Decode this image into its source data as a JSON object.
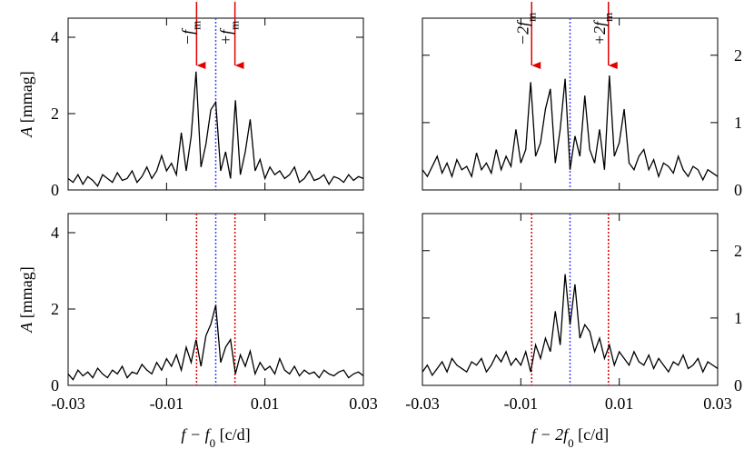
{
  "chart_data": [
    {
      "type": "line",
      "xlim": [
        -0.03,
        0.03
      ],
      "xticks": [
        -0.03,
        -0.01,
        0.01,
        0.03
      ],
      "ylim": [
        0,
        4.5
      ],
      "yticks": [
        0,
        2,
        4
      ],
      "y_axis_side": "left",
      "ylabel": [
        "A",
        " [mmag]"
      ],
      "center": 0,
      "center_color": "#4444ff",
      "sidebands": [
        -0.0039,
        0.0039
      ],
      "sideband_color": "#e00000",
      "sideband_style": "arrow",
      "annotations": [
        [
          "−f",
          "m"
        ],
        [
          "+f",
          "m"
        ]
      ],
      "x": [
        -0.03,
        -0.029,
        -0.028,
        -0.027,
        -0.026,
        -0.025,
        -0.024,
        -0.023,
        -0.022,
        -0.021,
        -0.02,
        -0.019,
        -0.018,
        -0.017,
        -0.016,
        -0.015,
        -0.014,
        -0.013,
        -0.012,
        -0.011,
        -0.01,
        -0.009,
        -0.008,
        -0.007,
        -0.006,
        -0.005,
        -0.004,
        -0.003,
        -0.002,
        -0.001,
        0,
        0.001,
        0.002,
        0.003,
        0.004,
        0.005,
        0.006,
        0.007,
        0.008,
        0.009,
        0.01,
        0.011,
        0.012,
        0.013,
        0.014,
        0.015,
        0.016,
        0.017,
        0.018,
        0.019,
        0.02,
        0.021,
        0.022,
        0.023,
        0.024,
        0.025,
        0.026,
        0.027,
        0.028,
        0.029,
        0.03
      ],
      "series": [
        {
          "color": "#000000",
          "values": [
            0.3,
            0.2,
            0.4,
            0.15,
            0.35,
            0.25,
            0.1,
            0.4,
            0.3,
            0.2,
            0.45,
            0.25,
            0.3,
            0.5,
            0.2,
            0.35,
            0.6,
            0.3,
            0.5,
            0.9,
            0.5,
            0.7,
            0.4,
            1.5,
            0.5,
            1.4,
            3.1,
            0.6,
            1.2,
            2.1,
            2.3,
            0.5,
            1.0,
            0.3,
            2.35,
            0.4,
            1.0,
            1.85,
            0.5,
            0.8,
            0.3,
            0.6,
            0.4,
            0.5,
            0.3,
            0.4,
            0.6,
            0.2,
            0.3,
            0.5,
            0.25,
            0.3,
            0.4,
            0.15,
            0.35,
            0.3,
            0.2,
            0.4,
            0.25,
            0.35,
            0.3
          ]
        }
      ]
    },
    {
      "type": "line",
      "xlim": [
        -0.03,
        0.03
      ],
      "xticks": [
        -0.03,
        -0.01,
        0.01,
        0.03
      ],
      "ylim": [
        0,
        2.55
      ],
      "yticks": [
        0,
        1,
        2
      ],
      "y_axis_side": "right",
      "center": 0,
      "center_color": "#4444ff",
      "sidebands": [
        -0.0078,
        0.0078
      ],
      "sideband_color": "#e00000",
      "sideband_style": "arrow",
      "annotations": [
        [
          "−2f",
          "m"
        ],
        [
          "+2f",
          "m"
        ]
      ],
      "x": [
        -0.03,
        -0.029,
        -0.028,
        -0.027,
        -0.026,
        -0.025,
        -0.024,
        -0.023,
        -0.022,
        -0.021,
        -0.02,
        -0.019,
        -0.018,
        -0.017,
        -0.016,
        -0.015,
        -0.014,
        -0.013,
        -0.012,
        -0.011,
        -0.01,
        -0.009,
        -0.008,
        -0.007,
        -0.006,
        -0.005,
        -0.004,
        -0.003,
        -0.002,
        -0.001,
        0,
        0.001,
        0.002,
        0.003,
        0.004,
        0.005,
        0.006,
        0.007,
        0.008,
        0.009,
        0.01,
        0.011,
        0.012,
        0.013,
        0.014,
        0.015,
        0.016,
        0.017,
        0.018,
        0.019,
        0.02,
        0.021,
        0.022,
        0.023,
        0.024,
        0.025,
        0.026,
        0.027,
        0.028,
        0.029,
        0.03
      ],
      "series": [
        {
          "color": "#000000",
          "values": [
            0.3,
            0.2,
            0.35,
            0.5,
            0.25,
            0.4,
            0.2,
            0.45,
            0.3,
            0.35,
            0.2,
            0.55,
            0.3,
            0.4,
            0.25,
            0.6,
            0.3,
            0.5,
            0.35,
            0.9,
            0.4,
            0.6,
            1.6,
            0.5,
            0.7,
            1.2,
            1.5,
            0.4,
            0.9,
            1.65,
            0.3,
            0.8,
            0.5,
            1.4,
            0.6,
            0.4,
            0.9,
            0.3,
            1.7,
            0.5,
            0.7,
            1.2,
            0.4,
            0.3,
            0.5,
            0.6,
            0.3,
            0.45,
            0.2,
            0.4,
            0.35,
            0.25,
            0.5,
            0.3,
            0.2,
            0.35,
            0.3,
            0.15,
            0.3,
            0.25,
            0.2
          ]
        }
      ]
    },
    {
      "type": "line",
      "xlim": [
        -0.03,
        0.03
      ],
      "xticks": [
        -0.03,
        -0.01,
        0.01,
        0.03
      ],
      "ylim": [
        0,
        4.5
      ],
      "yticks": [
        0,
        2,
        4
      ],
      "y_axis_side": "left",
      "ylabel": [
        "A",
        " [mmag]"
      ],
      "xlabel": [
        "f",
        " − f",
        "0",
        " [c/d]"
      ],
      "center": 0,
      "center_color": "#4444ff",
      "sidebands": [
        -0.0039,
        0.0039
      ],
      "sideband_color": "#e00000",
      "sideband_style": "dotted",
      "x": [
        -0.03,
        -0.029,
        -0.028,
        -0.027,
        -0.026,
        -0.025,
        -0.024,
        -0.023,
        -0.022,
        -0.021,
        -0.02,
        -0.019,
        -0.018,
        -0.017,
        -0.016,
        -0.015,
        -0.014,
        -0.013,
        -0.012,
        -0.011,
        -0.01,
        -0.009,
        -0.008,
        -0.007,
        -0.006,
        -0.005,
        -0.004,
        -0.003,
        -0.002,
        -0.001,
        0,
        0.001,
        0.002,
        0.003,
        0.004,
        0.005,
        0.006,
        0.007,
        0.008,
        0.009,
        0.01,
        0.011,
        0.012,
        0.013,
        0.014,
        0.015,
        0.016,
        0.017,
        0.018,
        0.019,
        0.02,
        0.021,
        0.022,
        0.023,
        0.024,
        0.025,
        0.026,
        0.027,
        0.028,
        0.029,
        0.03
      ],
      "series": [
        {
          "color": "#000000",
          "values": [
            0.3,
            0.15,
            0.4,
            0.25,
            0.35,
            0.2,
            0.45,
            0.3,
            0.2,
            0.4,
            0.3,
            0.5,
            0.2,
            0.35,
            0.3,
            0.55,
            0.4,
            0.3,
            0.6,
            0.4,
            0.7,
            0.5,
            0.8,
            0.4,
            1.0,
            0.6,
            1.2,
            0.5,
            1.3,
            1.6,
            2.1,
            0.6,
            1.0,
            1.2,
            0.3,
            0.8,
            0.5,
            0.9,
            0.3,
            0.6,
            0.4,
            0.5,
            0.3,
            0.7,
            0.4,
            0.3,
            0.5,
            0.25,
            0.4,
            0.3,
            0.35,
            0.2,
            0.4,
            0.3,
            0.25,
            0.35,
            0.4,
            0.2,
            0.3,
            0.35,
            0.25
          ]
        }
      ]
    },
    {
      "type": "line",
      "xlim": [
        -0.03,
        0.03
      ],
      "xticks": [
        -0.03,
        -0.01,
        0.01,
        0.03
      ],
      "ylim": [
        0,
        2.55
      ],
      "yticks": [
        0,
        1,
        2
      ],
      "y_axis_side": "right",
      "xlabel": [
        "f",
        " − 2f",
        "0",
        " [c/d]"
      ],
      "center": 0,
      "center_color": "#4444ff",
      "sidebands": [
        -0.0078,
        0.0078
      ],
      "sideband_color": "#e00000",
      "sideband_style": "dotted",
      "x": [
        -0.03,
        -0.029,
        -0.028,
        -0.027,
        -0.026,
        -0.025,
        -0.024,
        -0.023,
        -0.022,
        -0.021,
        -0.02,
        -0.019,
        -0.018,
        -0.017,
        -0.016,
        -0.015,
        -0.014,
        -0.013,
        -0.012,
        -0.011,
        -0.01,
        -0.009,
        -0.008,
        -0.007,
        -0.006,
        -0.005,
        -0.004,
        -0.003,
        -0.002,
        -0.001,
        0,
        0.001,
        0.002,
        0.003,
        0.004,
        0.005,
        0.006,
        0.007,
        0.008,
        0.009,
        0.01,
        0.011,
        0.012,
        0.013,
        0.014,
        0.015,
        0.016,
        0.017,
        0.018,
        0.019,
        0.02,
        0.021,
        0.022,
        0.023,
        0.024,
        0.025,
        0.026,
        0.027,
        0.028,
        0.029,
        0.03
      ],
      "series": [
        {
          "color": "#000000",
          "values": [
            0.2,
            0.3,
            0.15,
            0.25,
            0.35,
            0.2,
            0.4,
            0.3,
            0.25,
            0.2,
            0.35,
            0.3,
            0.4,
            0.2,
            0.3,
            0.45,
            0.35,
            0.5,
            0.3,
            0.4,
            0.3,
            0.5,
            0.2,
            0.6,
            0.4,
            0.7,
            0.5,
            1.1,
            0.6,
            1.65,
            0.9,
            1.5,
            0.7,
            0.9,
            0.8,
            0.5,
            0.7,
            0.4,
            0.6,
            0.3,
            0.5,
            0.4,
            0.3,
            0.5,
            0.35,
            0.3,
            0.45,
            0.25,
            0.4,
            0.3,
            0.2,
            0.35,
            0.3,
            0.45,
            0.25,
            0.3,
            0.4,
            0.2,
            0.35,
            0.3,
            0.25
          ]
        }
      ]
    }
  ]
}
